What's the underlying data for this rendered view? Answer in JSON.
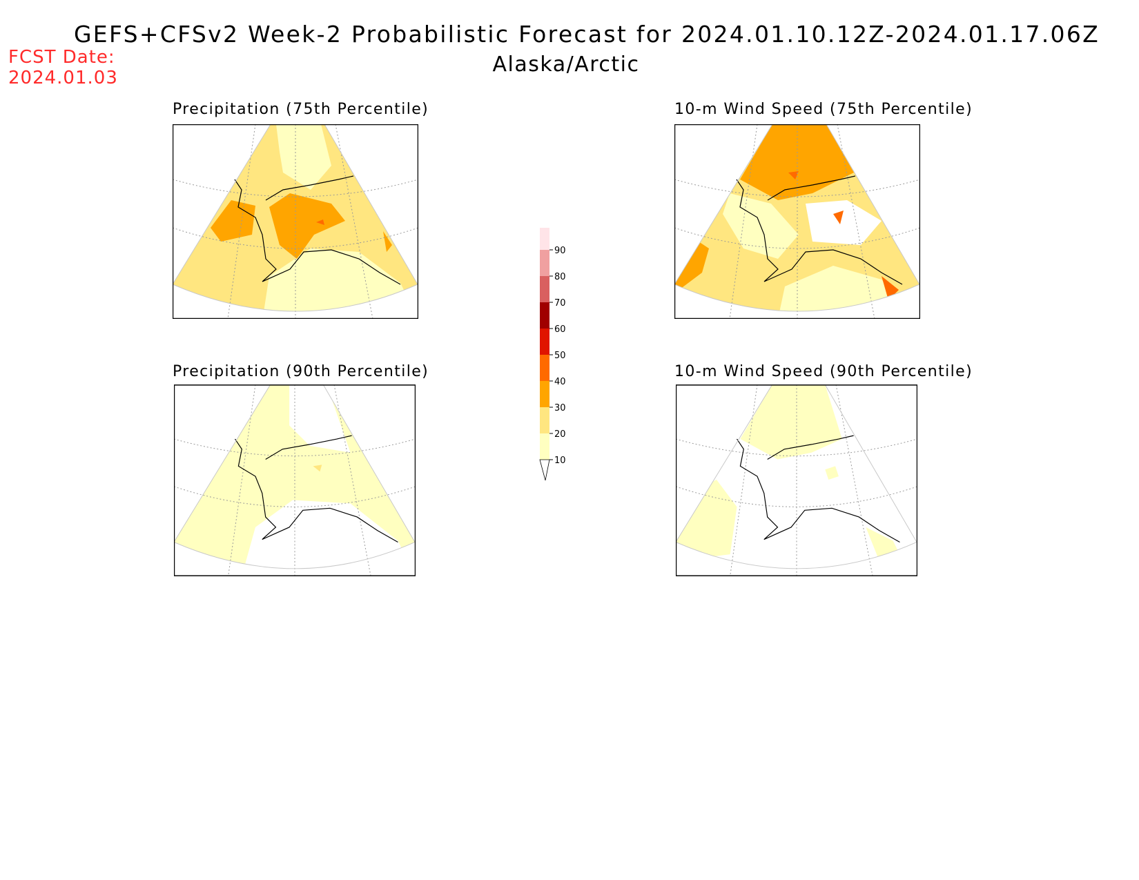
{
  "header": {
    "title": "GEFS+CFSv2 Week-2 Probabilistic Forecast for 2024.01.10.12Z-2024.01.17.06Z",
    "subtitle": "Alaska/Arctic",
    "fcst_label": "FCST Date:",
    "fcst_date": "2024.01.03"
  },
  "panels": [
    {
      "id": "precip-75",
      "title": "Precipitation (75th Percentile)"
    },
    {
      "id": "wind-75",
      "title": "10-m Wind Speed (75th Percentile)"
    },
    {
      "id": "precip-90",
      "title": "Precipitation (90th Percentile)"
    },
    {
      "id": "wind-90",
      "title": "10-m Wind Speed (90th Percentile)"
    }
  ],
  "colorbar": {
    "levels": [
      "10",
      "20",
      "30",
      "40",
      "50",
      "60",
      "70",
      "80",
      "90"
    ],
    "colors": [
      "#ffffc0",
      "#ffe680",
      "#ffa500",
      "#ff6a00",
      "#e01400",
      "#a00000",
      "#d96060",
      "#f0a0a0",
      "#ffe4e8"
    ]
  }
}
